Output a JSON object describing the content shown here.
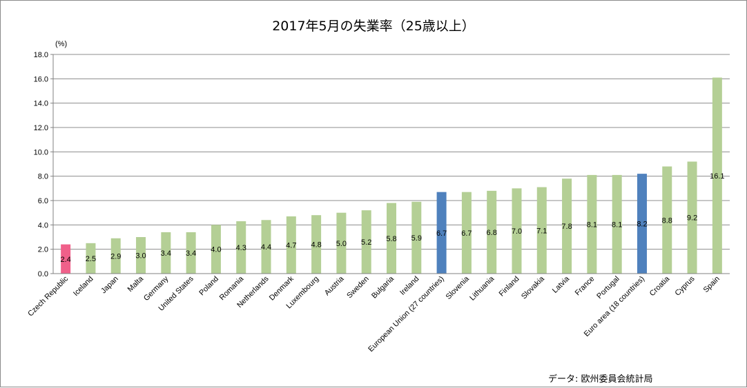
{
  "source": "データ: 欧州委員会統計局",
  "colors": {
    "default": "#b4cf95",
    "highlight_pink": "#f0608a",
    "highlight_blue": "#4f81bd",
    "gridline": "#8c8c8c"
  },
  "chart_data": {
    "type": "bar",
    "title": "2017年5月の失業率（25歳以上）",
    "ylabel": "(%)",
    "xlabel": "",
    "ylim": [
      0,
      18
    ],
    "yticks": [
      "0.0",
      "2.0",
      "4.0",
      "6.0",
      "8.0",
      "10.0",
      "12.0",
      "14.0",
      "16.0",
      "18.0"
    ],
    "grid": true,
    "legend": "none",
    "categories": [
      "Czech Republic",
      "Iceland",
      "Japan",
      "Malta",
      "Germany",
      "United States",
      "Poland",
      "Romania",
      "Netherlands",
      "Denmark",
      "Luxembourg",
      "Austria",
      "Sweden",
      "Bulgaria",
      "Ireland",
      "European Union (27 countries)",
      "Slovenia",
      "Lithuania",
      "Finland",
      "Slovakia",
      "Latvia",
      "France",
      "Portugal",
      "Euro area (18 countries)",
      "Croatia",
      "Cyprus",
      "Spain"
    ],
    "values": [
      2.4,
      2.5,
      2.9,
      3.0,
      3.4,
      3.4,
      4.0,
      4.3,
      4.4,
      4.7,
      4.8,
      5.0,
      5.2,
      5.8,
      5.9,
      6.7,
      6.7,
      6.8,
      7.0,
      7.1,
      7.8,
      8.1,
      8.1,
      8.2,
      8.8,
      9.2,
      16.1
    ],
    "value_labels": [
      "2.4",
      "2.5",
      "2.9",
      "3.0",
      "3.4",
      "3.4",
      "4.0",
      "4.3",
      "4.4",
      "4.7",
      "4.8",
      "5.0",
      "5.2",
      "5.8",
      "5.9",
      "6.7",
      "6.7",
      "6.8",
      "7.0",
      "7.1",
      "7.8",
      "8.1",
      "8.1",
      "8.2",
      "8.8",
      "9.2",
      "16.1"
    ],
    "bar_colors": [
      "#f0608a",
      "#b4cf95",
      "#b4cf95",
      "#b4cf95",
      "#b4cf95",
      "#b4cf95",
      "#b4cf95",
      "#b4cf95",
      "#b4cf95",
      "#b4cf95",
      "#b4cf95",
      "#b4cf95",
      "#b4cf95",
      "#b4cf95",
      "#b4cf95",
      "#4f81bd",
      "#b4cf95",
      "#b4cf95",
      "#b4cf95",
      "#b4cf95",
      "#b4cf95",
      "#b4cf95",
      "#b4cf95",
      "#4f81bd",
      "#b4cf95",
      "#b4cf95",
      "#b4cf95"
    ]
  }
}
